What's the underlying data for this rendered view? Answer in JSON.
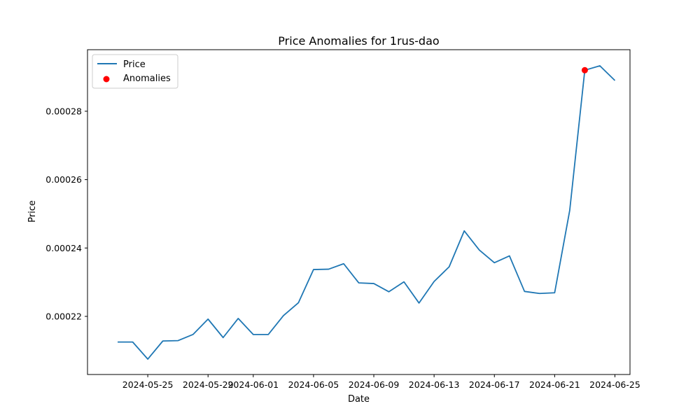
{
  "chart_data": {
    "type": "line",
    "title": "Price Anomalies for 1rus-dao",
    "xlabel": "Date",
    "ylabel": "Price",
    "grid": false,
    "legend_position": "top-left",
    "xlim": [
      "2024-05-21",
      "2024-06-26"
    ],
    "ylim": [
      0.000203,
      0.000298
    ],
    "x_ticks": [
      "2024-05-25",
      "2024-05-29",
      "2024-06-01",
      "2024-06-05",
      "2024-06-09",
      "2024-06-13",
      "2024-06-17",
      "2024-06-21",
      "2024-06-25"
    ],
    "y_ticks": [
      0.00022,
      0.00024,
      0.00026,
      0.00028
    ],
    "y_tick_labels": [
      "0.00022",
      "0.00024",
      "0.00026",
      "0.00028"
    ],
    "series": [
      {
        "name": "Price",
        "type": "line",
        "color": "#1f77b4",
        "x": [
          "2024-05-23",
          "2024-05-24",
          "2024-05-25",
          "2024-05-26",
          "2024-05-27",
          "2024-05-28",
          "2024-05-29",
          "2024-05-30",
          "2024-05-31",
          "2024-06-01",
          "2024-06-02",
          "2024-06-03",
          "2024-06-04",
          "2024-06-05",
          "2024-06-06",
          "2024-06-07",
          "2024-06-08",
          "2024-06-09",
          "2024-06-10",
          "2024-06-11",
          "2024-06-12",
          "2024-06-13",
          "2024-06-14",
          "2024-06-15",
          "2024-06-16",
          "2024-06-17",
          "2024-06-18",
          "2024-06-19",
          "2024-06-20",
          "2024-06-21",
          "2024-06-22",
          "2024-06-23",
          "2024-06-24",
          "2024-06-25"
        ],
        "y": [
          0.0002125,
          0.0002125,
          0.0002075,
          0.0002128,
          0.0002129,
          0.0002147,
          0.0002192,
          0.0002138,
          0.0002194,
          0.0002147,
          0.0002147,
          0.0002202,
          0.000224,
          0.0002337,
          0.0002338,
          0.0002354,
          0.0002298,
          0.0002296,
          0.0002272,
          0.0002301,
          0.0002239,
          0.0002302,
          0.0002345,
          0.000245,
          0.0002394,
          0.0002357,
          0.0002377,
          0.0002273,
          0.0002267,
          0.0002269,
          0.000251,
          0.000292,
          0.0002933,
          0.000289
        ]
      },
      {
        "name": "Anomalies",
        "type": "scatter",
        "color": "#ff0000",
        "x": [
          "2024-06-23"
        ],
        "y": [
          0.000292
        ]
      }
    ]
  }
}
